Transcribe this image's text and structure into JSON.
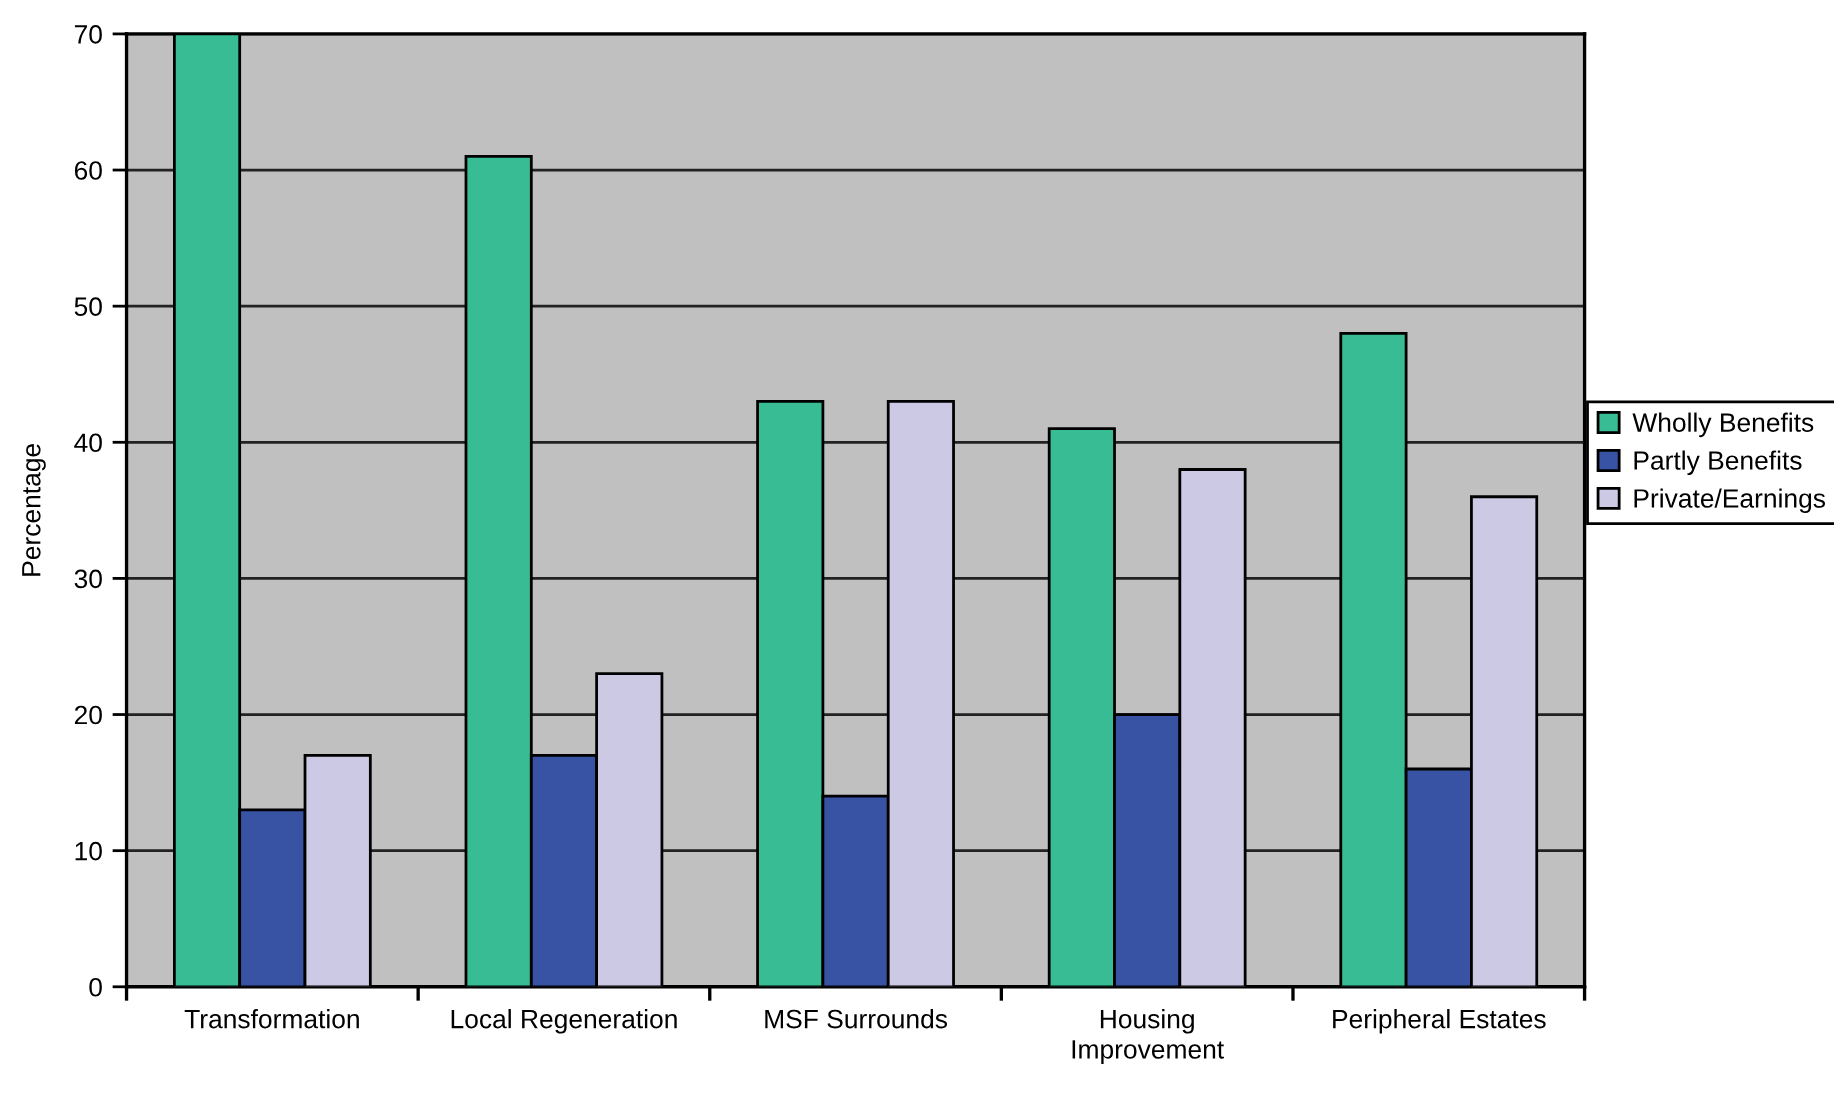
{
  "chart_data": {
    "type": "bar",
    "ylabel": "Percentage",
    "categories": [
      "Transformation",
      "Local Regeneration",
      "MSF Surrounds",
      "Housing\nImprovement",
      "Peripheral Estates"
    ],
    "series": [
      {
        "name": "Wholly Benefits",
        "color": "#38bc94",
        "values": [
          70,
          61,
          43,
          41,
          48
        ]
      },
      {
        "name": "Partly Benefits",
        "color": "#3953a4",
        "values": [
          13,
          17,
          14,
          20,
          16
        ]
      },
      {
        "name": "Private/Earnings",
        "color": "#ccc9e5",
        "values": [
          17,
          23,
          43,
          38,
          36
        ]
      }
    ],
    "ylim": [
      0,
      70
    ],
    "yticks": [
      0,
      10,
      20,
      30,
      40,
      50,
      60,
      70
    ],
    "grid": "y",
    "legend": "right"
  }
}
